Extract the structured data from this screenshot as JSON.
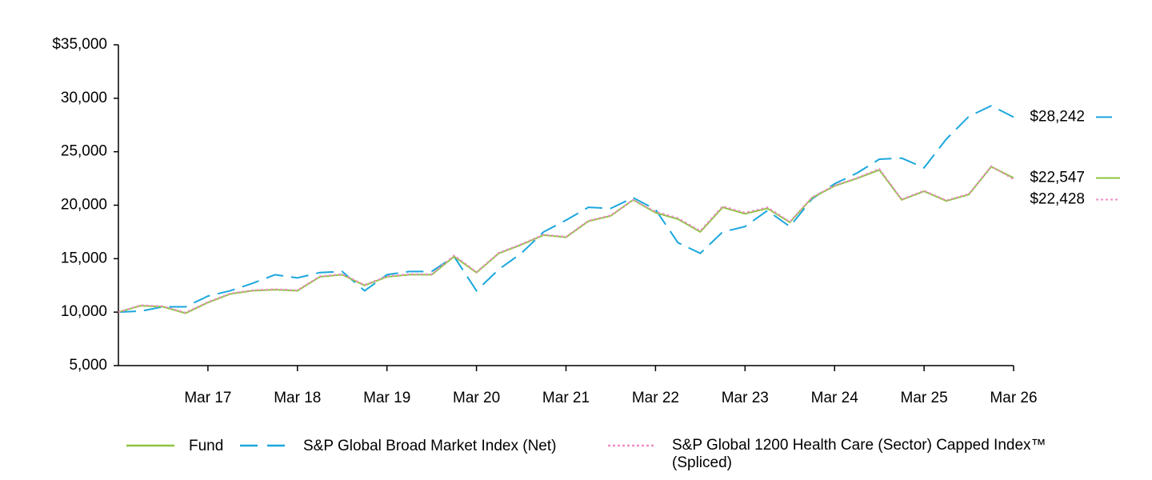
{
  "chart_data": {
    "type": "line",
    "categories": [
      null,
      null,
      null,
      null,
      "Mar 17",
      null,
      null,
      null,
      "Mar 18",
      null,
      null,
      null,
      "Mar 19",
      null,
      null,
      null,
      "Mar 20",
      null,
      null,
      null,
      "Mar 21",
      null,
      null,
      null,
      "Mar 22",
      null,
      null,
      null,
      "Mar 23",
      null,
      null,
      null,
      "Mar 24",
      null,
      null,
      null,
      "Mar 25",
      null,
      null,
      null,
      "Mar 26"
    ],
    "ylim": [
      5000,
      35000
    ],
    "yticks": [
      {
        "value": 5000,
        "label": "5,000"
      },
      {
        "value": 10000,
        "label": "10,000"
      },
      {
        "value": 15000,
        "label": "15,000"
      },
      {
        "value": 20000,
        "label": "20,000"
      },
      {
        "value": 25000,
        "label": "25,000"
      },
      {
        "value": 30000,
        "label": "30,000"
      },
      {
        "value": 35000,
        "label": "$35,000"
      }
    ],
    "series": [
      {
        "name": "Fund",
        "color": "#8cc63f",
        "dash": "solid",
        "end_label": "$22,547",
        "values": [
          10000,
          10600,
          10500,
          9900,
          10900,
          11700,
          12000,
          12100,
          12000,
          13300,
          13500,
          12500,
          13300,
          13500,
          13500,
          15200,
          13700,
          15500,
          16300,
          17200,
          17000,
          18500,
          19000,
          20500,
          19300,
          18700,
          17500,
          19800,
          19200,
          19700,
          18400,
          20700,
          21800,
          22500,
          23300,
          20500,
          21300,
          20400,
          21000,
          23600,
          22547
        ]
      },
      {
        "name": "S&P Global Broad Market Index (Net)",
        "color": "#1ba7dd",
        "dash": "dashed",
        "end_label": "$28,242",
        "values": [
          10000,
          10100,
          10500,
          10500,
          11500,
          12000,
          12700,
          13500,
          13200,
          13700,
          13800,
          12000,
          13500,
          13800,
          13800,
          15200,
          12000,
          14000,
          15500,
          17500,
          18600,
          19800,
          19700,
          20700,
          19600,
          16500,
          15500,
          17500,
          18000,
          19500,
          18000,
          20600,
          22000,
          23000,
          24300,
          24400,
          23500,
          26200,
          28300,
          29300,
          28242
        ]
      },
      {
        "name": "S&P Global 1200 Health Care (Sector) Capped Index™ (Spliced)",
        "color": "#f08cc8",
        "dash": "dotted",
        "end_label": "$22,428",
        "values": [
          10000,
          10650,
          10550,
          9950,
          10950,
          11750,
          12050,
          12150,
          12050,
          13350,
          13550,
          12550,
          13350,
          13550,
          13550,
          15300,
          13750,
          15550,
          16350,
          17250,
          17050,
          18550,
          19050,
          20500,
          19400,
          18800,
          17600,
          19900,
          19300,
          19800,
          18450,
          20750,
          21850,
          22550,
          23400,
          20550,
          21350,
          20450,
          21050,
          23650,
          22428
        ]
      }
    ]
  }
}
